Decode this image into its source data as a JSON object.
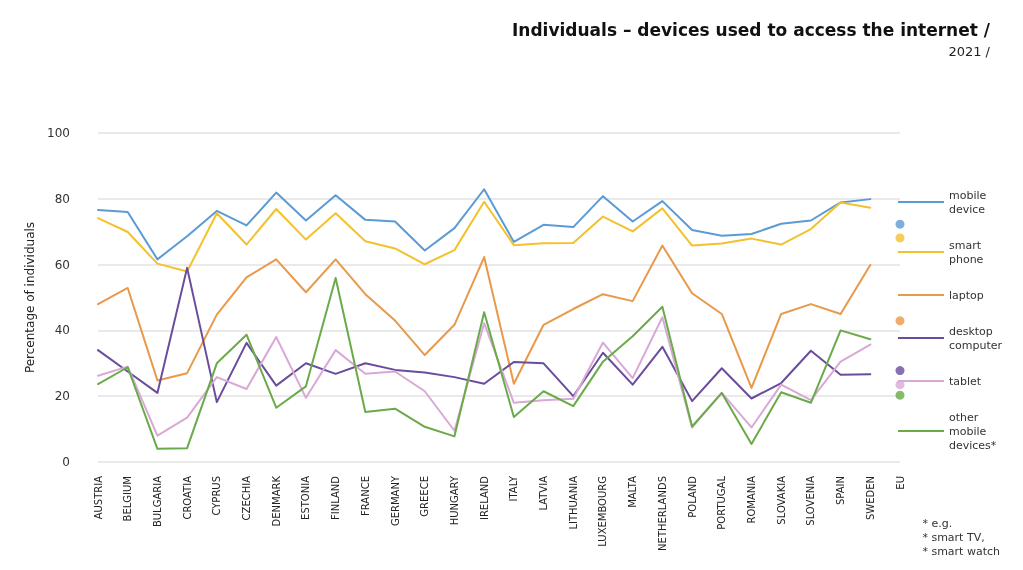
{
  "chart_data": {
    "type": "line",
    "title": "Individuals – devices used to access the internet /",
    "subtitle": "2021 /",
    "ylabel": "Percentage of individuals",
    "categories": [
      "AUSTRIA",
      "BELGIUM",
      "BULGARIA",
      "CROATIA",
      "CYPRUS",
      "CZECHIA",
      "DENMARK",
      "ESTONIA",
      "FINLAND",
      "FRANCE",
      "GERMANY",
      "GREECE",
      "HUNGARY",
      "IRELAND",
      "ITALY",
      "LATVIA",
      "LITHUANIA",
      "LUXEMBOURG",
      "MALTA",
      "NETHERLANDS",
      "POLAND",
      "PORTUGAL",
      "ROMANIA",
      "SLOVAKIA",
      "SLOVENIA",
      "SPAIN",
      "SWEDEN",
      "EU"
    ],
    "ylim": [
      0,
      100
    ],
    "yticks": [
      0,
      20,
      40,
      60,
      80,
      100
    ],
    "grid": "y",
    "legend": "right",
    "marker": "none",
    "line_style": "solid",
    "annotations": [
      "* e.g.\n* smart TV,\n* smart watch"
    ],
    "series": [
      {
        "name": "mobile device",
        "color": "#5b9bd5",
        "values": [
          76.6,
          76,
          61.6,
          68.6,
          76.3,
          71.9,
          81.9,
          73.4,
          81.1,
          73.6,
          73.1,
          64.3,
          71.1,
          82.9,
          66.9,
          72.1,
          71.4,
          80.8,
          73.1,
          79.3,
          70.5,
          68.8,
          69.3,
          72.4,
          73.4,
          78.9,
          79.9,
          null
        ]
      },
      {
        "name": "smart phone",
        "color": "#f2c12e",
        "values": [
          74.1,
          69.9,
          60.3,
          57.9,
          75.6,
          66.1,
          76.9,
          67.6,
          75.6,
          67.1,
          64.9,
          60.1,
          64.4,
          79.1,
          65.9,
          66.5,
          66.6,
          74.6,
          70.1,
          77.1,
          65.8,
          66.4,
          67.9,
          66.1,
          70.8,
          78.9,
          77.3,
          null
        ]
      },
      {
        "name": "laptop",
        "color": "#e8994a",
        "values": [
          48,
          52.9,
          24.8,
          27,
          44.8,
          56.1,
          61.6,
          51.6,
          61.6,
          51,
          43,
          32.5,
          41.7,
          62.3,
          23.8,
          41.7,
          46.5,
          51,
          48.9,
          65.8,
          51.3,
          45,
          22.5,
          45,
          48,
          45,
          59.9,
          null
        ]
      },
      {
        "name": "desktop computer",
        "color": "#6a4c9c",
        "values": [
          34,
          27.5,
          21,
          59,
          18.2,
          36.2,
          23.2,
          30,
          26.8,
          30,
          28,
          27.2,
          25.8,
          23.8,
          30.4,
          30,
          20,
          33.2,
          23.5,
          35,
          18.5,
          28.5,
          19.3,
          24,
          33.8,
          26.5,
          26.7,
          null
        ]
      },
      {
        "name": "tablet",
        "color": "#d9a9d6",
        "values": [
          26.2,
          29,
          8,
          13.5,
          25.8,
          22.2,
          38,
          19.5,
          34,
          26.8,
          27.5,
          21.5,
          9.5,
          42.2,
          18,
          18.8,
          19.2,
          36.3,
          25.5,
          44,
          10.5,
          21,
          10.5,
          23.5,
          18.8,
          30.5,
          35.7,
          null
        ]
      },
      {
        "name": "other mobile devices*",
        "color": "#6aaa4a",
        "values": [
          23.7,
          28.8,
          4,
          4.2,
          30,
          38.7,
          16.5,
          23,
          55.9,
          15.2,
          16.2,
          10.7,
          7.8,
          45.5,
          13.7,
          21.5,
          17,
          30.5,
          38.2,
          47.2,
          10.8,
          21,
          5.5,
          21.2,
          18,
          40,
          37.3,
          null
        ]
      },
      {
        "type": "scatter",
        "marker": "circle",
        "color": "#5b9bd5",
        "x": [
          "EU"
        ],
        "values": [
          72.3
        ]
      },
      {
        "type": "scatter",
        "marker": "circle",
        "color": "#f2c12e",
        "x": [
          "EU"
        ],
        "values": [
          68.1
        ]
      },
      {
        "type": "scatter",
        "marker": "circle",
        "color": "#e8994a",
        "x": [
          "EU"
        ],
        "values": [
          42.9
        ]
      },
      {
        "type": "scatter",
        "marker": "circle",
        "color": "#6a4c9c",
        "x": [
          "EU"
        ],
        "values": [
          27.8
        ]
      },
      {
        "type": "scatter",
        "marker": "circle",
        "color": "#d9a9d6",
        "x": [
          "EU"
        ],
        "values": [
          23.5
        ]
      },
      {
        "type": "scatter",
        "marker": "circle",
        "color": "#6aaa4a",
        "x": [
          "EU"
        ],
        "values": [
          20.3
        ]
      }
    ]
  }
}
